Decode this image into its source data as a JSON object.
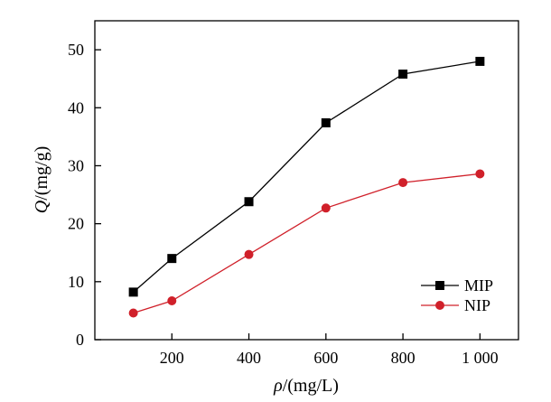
{
  "chart_data": {
    "type": "line",
    "xlabel_symbol": "ρ",
    "xlabel_unit": "/(mg/L)",
    "ylabel_symbol": "Q",
    "ylabel_unit": "/(mg/g)",
    "xlim": [
      0,
      1100
    ],
    "ylim": [
      0,
      55
    ],
    "x_ticks": [
      200,
      400,
      600,
      800,
      1000
    ],
    "x_tick_labels": [
      "200",
      "400",
      "600",
      "800",
      "1 000"
    ],
    "y_ticks": [
      0,
      10,
      20,
      30,
      40,
      50
    ],
    "y_tick_labels": [
      "0",
      "10",
      "20",
      "30",
      "40",
      "50"
    ],
    "legend_position": "bottom-right",
    "grid": false,
    "series": [
      {
        "name": "MIP",
        "color": "#000000",
        "marker": "square",
        "x": [
          100,
          200,
          400,
          600,
          800,
          1000
        ],
        "y": [
          8.2,
          14.0,
          23.8,
          37.4,
          45.8,
          48.0
        ]
      },
      {
        "name": "NIP",
        "color": "#d0202a",
        "marker": "circle",
        "x": [
          100,
          200,
          400,
          600,
          800,
          1000
        ],
        "y": [
          4.6,
          6.7,
          14.7,
          22.7,
          27.1,
          28.6
        ]
      }
    ]
  }
}
